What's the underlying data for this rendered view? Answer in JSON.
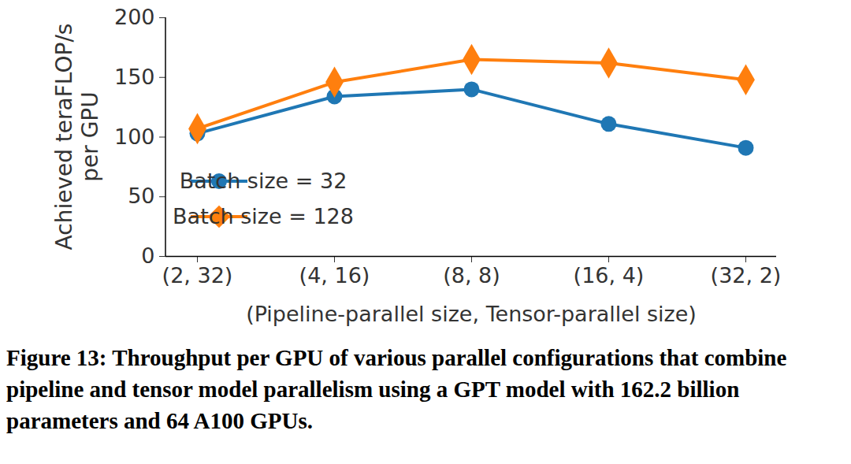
{
  "chart_data": {
    "type": "line",
    "caption": "Figure 13: Throughput per GPU of various parallel configurations that combine pipeline and tensor model parallelism using a GPT model with 162.2 billion parameters and 64 A100 GPUs.",
    "x_label": "(Pipeline-parallel size, Tensor-parallel size)",
    "y_label": "Achieved teraFLOP/s\nper GPU",
    "categories": [
      "(2, 32)",
      "(4, 16)",
      "(8, 8)",
      "(16, 4)",
      "(32, 2)"
    ],
    "series": [
      {
        "name": "Batch size = 32",
        "color": "#1f77b4",
        "marker": "circle",
        "values": [
          103,
          134,
          140,
          111,
          91
        ]
      },
      {
        "name": "Batch size = 128",
        "color": "#ff7f0e",
        "marker": "diamond",
        "values": [
          107,
          146,
          165,
          162,
          148
        ]
      }
    ],
    "ylim": [
      0,
      200
    ],
    "yticks": [
      0,
      50,
      100,
      150,
      200
    ],
    "grid": false,
    "legend": "lower left"
  }
}
